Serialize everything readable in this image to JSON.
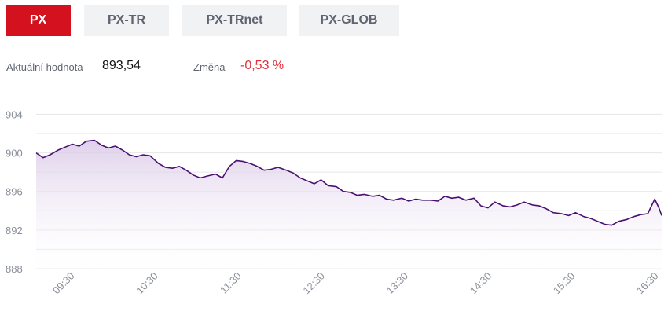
{
  "tabs": [
    {
      "label": "PX",
      "active": true
    },
    {
      "label": "PX-TR",
      "active": false
    },
    {
      "label": "PX-TRnet",
      "active": false
    },
    {
      "label": "PX-GLOB",
      "active": false
    }
  ],
  "summary": {
    "current_label": "Aktuální hodnota",
    "current_value": "893,54",
    "change_label": "Změna",
    "change_value": "-0,53 %"
  },
  "colors": {
    "active_tab": "#d4111e",
    "inactive_tab": "#f1f2f4",
    "line": "#4a0f72",
    "area": "#e9dff0",
    "negative": "#e0303a",
    "grid": "#e6e6ea"
  },
  "chart_data": {
    "type": "area",
    "title": "",
    "xlabel": "",
    "ylabel": "",
    "ylim": [
      888,
      905.5
    ],
    "xlim": [
      "09:02",
      "16:32"
    ],
    "y_ticks": [
      "904",
      "900",
      "896",
      "892",
      "888"
    ],
    "x_ticks": [
      "09:30",
      "10:30",
      "11:30",
      "12:30",
      "13:30",
      "14:30",
      "15:30",
      "16:30"
    ],
    "grid": true,
    "legend": "none",
    "series": [
      {
        "x": [
          "09:02",
          "09:07",
          "09:12",
          "09:18",
          "09:23",
          "09:28",
          "09:33",
          "09:38",
          "09:44",
          "09:49",
          "09:54",
          "09:59",
          "10:04",
          "10:09",
          "10:14",
          "10:19",
          "10:24",
          "10:30",
          "10:35",
          "10:40",
          "10:45",
          "10:50",
          "10:55",
          "11:00",
          "11:05",
          "11:11",
          "11:16",
          "11:21",
          "11:26",
          "11:31",
          "11:36",
          "11:41",
          "11:46",
          "11:51",
          "11:56",
          "12:02",
          "12:07",
          "12:12",
          "12:17",
          "12:22",
          "12:27",
          "12:32",
          "12:38",
          "12:43",
          "12:48",
          "12:53",
          "12:58",
          "13:04",
          "13:09",
          "13:14",
          "13:19",
          "13:25",
          "13:30",
          "13:35",
          "13:40",
          "13:46",
          "13:51",
          "13:56",
          "14:01",
          "14:06",
          "14:11",
          "14:17",
          "14:22",
          "14:27",
          "14:32",
          "14:38",
          "14:43",
          "14:48",
          "14:53",
          "14:59",
          "15:04",
          "15:09",
          "15:14",
          "15:20",
          "15:25",
          "15:30",
          "15:36",
          "15:41",
          "15:46",
          "15:51",
          "15:56",
          "16:01",
          "16:07",
          "16:12",
          "16:17",
          "16:22",
          "16:27",
          "16:30",
          "16:32"
        ],
        "values": [
          900.0,
          899.5,
          899.8,
          900.3,
          900.6,
          900.9,
          900.7,
          901.2,
          901.3,
          900.8,
          900.5,
          900.7,
          900.3,
          899.8,
          899.6,
          899.8,
          899.7,
          898.9,
          898.5,
          898.4,
          898.6,
          898.2,
          897.7,
          897.4,
          897.6,
          897.8,
          897.4,
          898.6,
          899.2,
          899.1,
          898.9,
          898.6,
          898.2,
          898.3,
          898.5,
          898.2,
          897.9,
          897.4,
          897.1,
          896.8,
          897.2,
          896.6,
          896.5,
          896.0,
          895.9,
          895.6,
          895.7,
          895.5,
          895.6,
          895.2,
          895.1,
          895.3,
          895.0,
          895.2,
          895.1,
          895.1,
          895.0,
          895.5,
          895.3,
          895.4,
          895.1,
          895.3,
          894.5,
          894.3,
          894.9,
          894.5,
          894.4,
          894.6,
          894.9,
          894.6,
          894.5,
          894.2,
          893.8,
          893.7,
          893.5,
          893.8,
          893.4,
          893.2,
          892.9,
          892.6,
          892.5,
          892.9,
          893.1,
          893.4,
          893.6,
          893.7,
          895.2,
          894.3,
          893.5
        ]
      }
    ]
  }
}
